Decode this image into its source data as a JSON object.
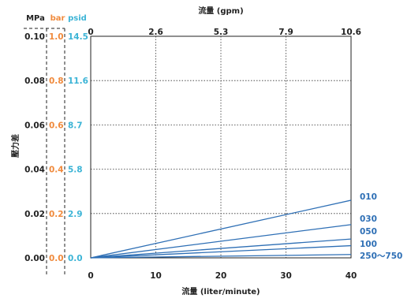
{
  "chart_data": {
    "type": "line",
    "x_top_label": "流量 (gpm)",
    "x_bottom_label": "流量 (liter/minute)",
    "y_label": "壓力差",
    "units": {
      "mpa": "MPa",
      "bar": "bar",
      "psid": "psid"
    },
    "x_ticks_bottom": [
      "0",
      "10",
      "20",
      "30",
      "40"
    ],
    "x_ticks_top": [
      "0",
      "2.6",
      "5.3",
      "7.9",
      "10.6"
    ],
    "y_ticks_mpa": [
      "0.00",
      "0.02",
      "0.04",
      "0.06",
      "0.08",
      "0.10"
    ],
    "y_ticks_bar": [
      "0.0",
      "0.2",
      "0.4",
      "0.6",
      "0.8",
      "1.0"
    ],
    "y_ticks_psid": [
      "0.0",
      "2.9",
      "5.8",
      "8.7",
      "11.6",
      "14.5"
    ],
    "xlim": [
      0,
      40
    ],
    "ylim": [
      0,
      0.1
    ],
    "grid": true,
    "series": [
      {
        "name": "010",
        "x": [
          0,
          40
        ],
        "y": [
          0,
          0.026
        ]
      },
      {
        "name": "030",
        "x": [
          0,
          40
        ],
        "y": [
          0,
          0.015
        ]
      },
      {
        "name": "050",
        "x": [
          0,
          40
        ],
        "y": [
          0,
          0.0085
        ]
      },
      {
        "name": "100",
        "x": [
          0,
          40
        ],
        "y": [
          0,
          0.0055
        ]
      },
      {
        "name": "250～750",
        "x": [
          0,
          40
        ],
        "y": [
          0,
          0.0015
        ]
      }
    ],
    "colors": {
      "bar": "#f08a3c",
      "psid": "#3cb4d6",
      "series": "#2e6fb5",
      "axis": "#222222"
    }
  }
}
